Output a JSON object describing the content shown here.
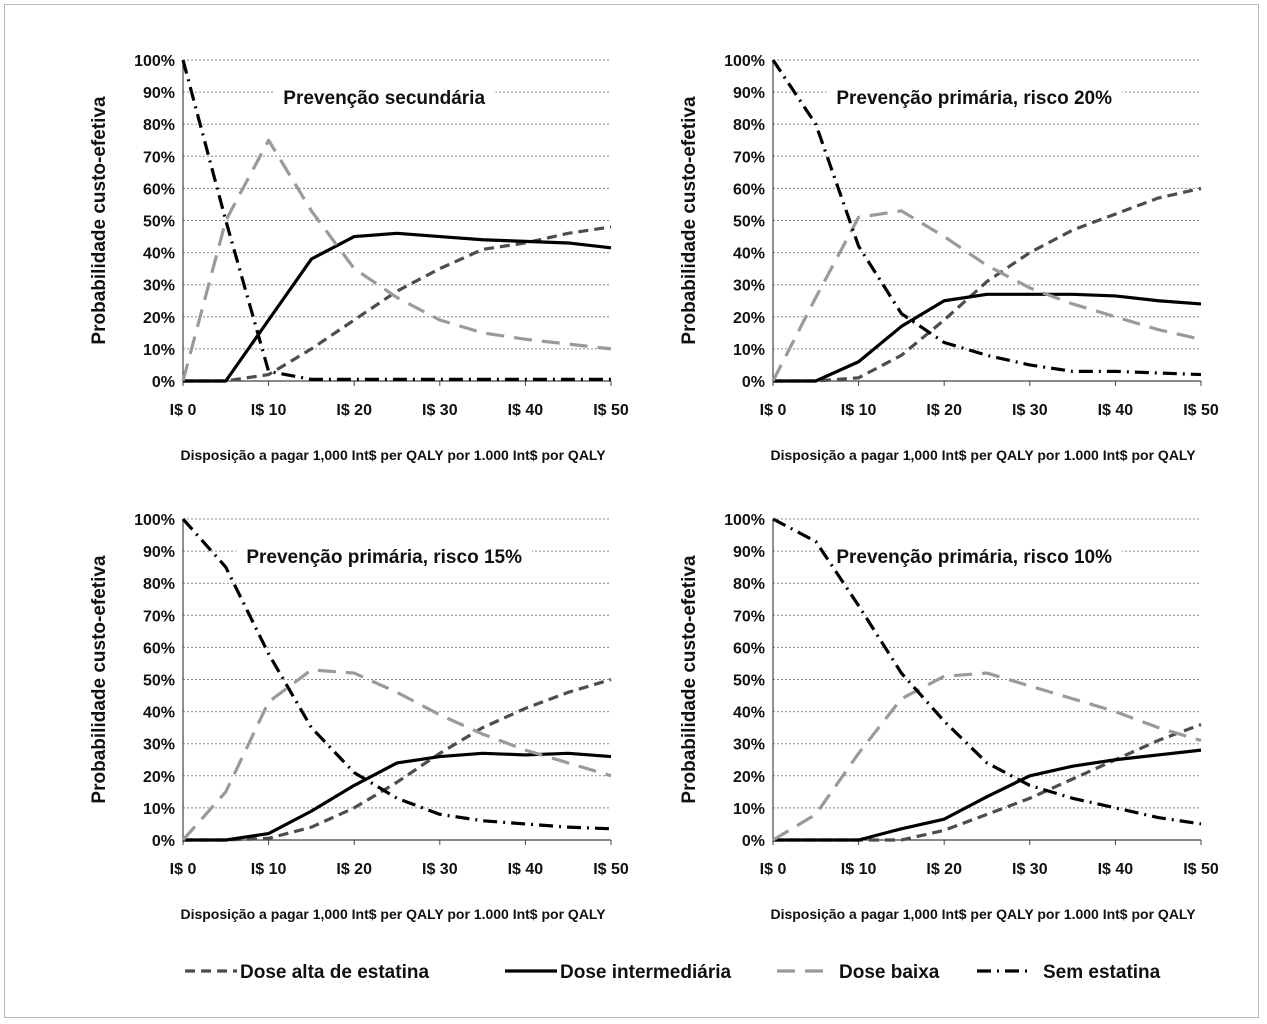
{
  "y_axis_label": "Probabilidade custo-efetiva",
  "x_axis_label": "Disposição a pagar 1,000 Int$ per QALY por 1.000 Int$ por QALY",
  "legend": [
    {
      "key": "high",
      "label": "Dose alta de estatina",
      "color": "#4d4d4d",
      "dash": "10,6"
    },
    {
      "key": "mid",
      "label": "Dose intermediária",
      "color": "#000000",
      "dash": ""
    },
    {
      "key": "low",
      "label": "Dose baixa",
      "color": "#9a9a9a",
      "dash": "18,10"
    },
    {
      "key": "none",
      "label": "Sem estatina",
      "color": "#000000",
      "dash": "14,6,2,6"
    }
  ],
  "chart_data": [
    {
      "type": "line",
      "title": "Prevenção secundária",
      "x": [
        0,
        5,
        10,
        15,
        20,
        25,
        30,
        35,
        40,
        45,
        50
      ],
      "x_ticks": [
        "I$ 0",
        "I$ 10",
        "I$ 20",
        "I$ 30",
        "I$ 40",
        "I$ 50"
      ],
      "y_ticks": [
        "0%",
        "10%",
        "20%",
        "30%",
        "40%",
        "50%",
        "60%",
        "70%",
        "80%",
        "90%",
        "100%"
      ],
      "ylim": [
        0,
        100
      ],
      "xlim": [
        0,
        50
      ],
      "series": [
        {
          "name": "Dose alta de estatina",
          "values": [
            0,
            0,
            2,
            10,
            19,
            28,
            35,
            41,
            43,
            46,
            48
          ]
        },
        {
          "name": "Dose intermediária",
          "values": [
            0,
            0,
            19,
            38,
            45,
            46,
            45,
            44,
            43.5,
            43,
            41.5
          ]
        },
        {
          "name": "Dose baixa",
          "values": [
            0,
            50,
            75,
            53,
            35,
            26,
            19,
            15,
            13,
            11.5,
            10
          ]
        },
        {
          "name": "Sem estatina",
          "values": [
            100,
            50,
            3,
            0.5,
            0.5,
            0.5,
            0.5,
            0.5,
            0.5,
            0.5,
            0.5
          ]
        }
      ]
    },
    {
      "type": "line",
      "title": "Prevenção primária, risco 20%",
      "x": [
        0,
        5,
        10,
        15,
        20,
        25,
        30,
        35,
        40,
        45,
        50
      ],
      "x_ticks": [
        "I$ 0",
        "I$ 10",
        "I$ 20",
        "I$ 30",
        "I$ 40",
        "I$ 50"
      ],
      "y_ticks": [
        "0%",
        "10%",
        "20%",
        "30%",
        "40%",
        "50%",
        "60%",
        "70%",
        "80%",
        "90%",
        "100%"
      ],
      "ylim": [
        0,
        100
      ],
      "xlim": [
        0,
        50
      ],
      "series": [
        {
          "name": "Dose alta de estatina",
          "values": [
            0,
            0,
            1,
            8,
            19,
            31,
            40,
            47,
            52,
            57,
            60
          ]
        },
        {
          "name": "Dose intermediária",
          "values": [
            0,
            0,
            6,
            17,
            25,
            27,
            27,
            27,
            26.5,
            25,
            24
          ]
        },
        {
          "name": "Dose baixa",
          "values": [
            0,
            26,
            51,
            53,
            45,
            36,
            29,
            24,
            20,
            16,
            13
          ]
        },
        {
          "name": "Sem estatina",
          "values": [
            100,
            80,
            42,
            21,
            12,
            8,
            5,
            3,
            3,
            2.5,
            2
          ]
        }
      ]
    },
    {
      "type": "line",
      "title": "Prevenção primária, risco 15%",
      "x": [
        0,
        5,
        10,
        15,
        20,
        25,
        30,
        35,
        40,
        45,
        50
      ],
      "x_ticks": [
        "I$ 0",
        "I$ 10",
        "I$ 20",
        "I$ 30",
        "I$ 40",
        "I$ 50"
      ],
      "y_ticks": [
        "0%",
        "10%",
        "20%",
        "30%",
        "40%",
        "50%",
        "60%",
        "70%",
        "80%",
        "90%",
        "100%"
      ],
      "ylim": [
        0,
        100
      ],
      "xlim": [
        0,
        50
      ],
      "series": [
        {
          "name": "Dose alta de estatina",
          "values": [
            0,
            0,
            0.5,
            4,
            10,
            18,
            27,
            35,
            41,
            46,
            50
          ]
        },
        {
          "name": "Dose intermediária",
          "values": [
            0,
            0,
            2,
            9,
            17,
            24,
            26,
            27,
            26.5,
            27,
            26
          ]
        },
        {
          "name": "Dose baixa",
          "values": [
            0,
            15,
            43,
            53,
            52,
            46,
            39,
            33,
            28,
            24,
            20
          ]
        },
        {
          "name": "Sem estatina",
          "values": [
            100,
            85,
            58,
            35,
            21,
            13,
            8,
            6,
            5,
            4,
            3.5
          ]
        }
      ]
    },
    {
      "type": "line",
      "title": "Prevenção primária, risco 10%",
      "x": [
        0,
        5,
        10,
        15,
        20,
        25,
        30,
        35,
        40,
        45,
        50
      ],
      "x_ticks": [
        "I$ 0",
        "I$ 10",
        "I$ 20",
        "I$ 30",
        "I$ 40",
        "I$ 50"
      ],
      "y_ticks": [
        "0%",
        "10%",
        "20%",
        "30%",
        "40%",
        "50%",
        "60%",
        "70%",
        "80%",
        "90%",
        "100%"
      ],
      "ylim": [
        0,
        100
      ],
      "xlim": [
        0,
        50
      ],
      "series": [
        {
          "name": "Dose alta de estatina",
          "values": [
            0,
            0,
            0,
            0,
            3,
            8,
            13,
            19,
            25,
            31,
            36
          ]
        },
        {
          "name": "Dose intermediária",
          "values": [
            0,
            0,
            0,
            3.5,
            6.5,
            13.5,
            20,
            23,
            25,
            26.5,
            28
          ]
        },
        {
          "name": "Dose baixa",
          "values": [
            0,
            8,
            27,
            44,
            51,
            52,
            48,
            44,
            40,
            35,
            31
          ]
        },
        {
          "name": "Sem estatina",
          "values": [
            100,
            93,
            73,
            52,
            37,
            24,
            17,
            13,
            10,
            7,
            5
          ]
        }
      ]
    }
  ]
}
